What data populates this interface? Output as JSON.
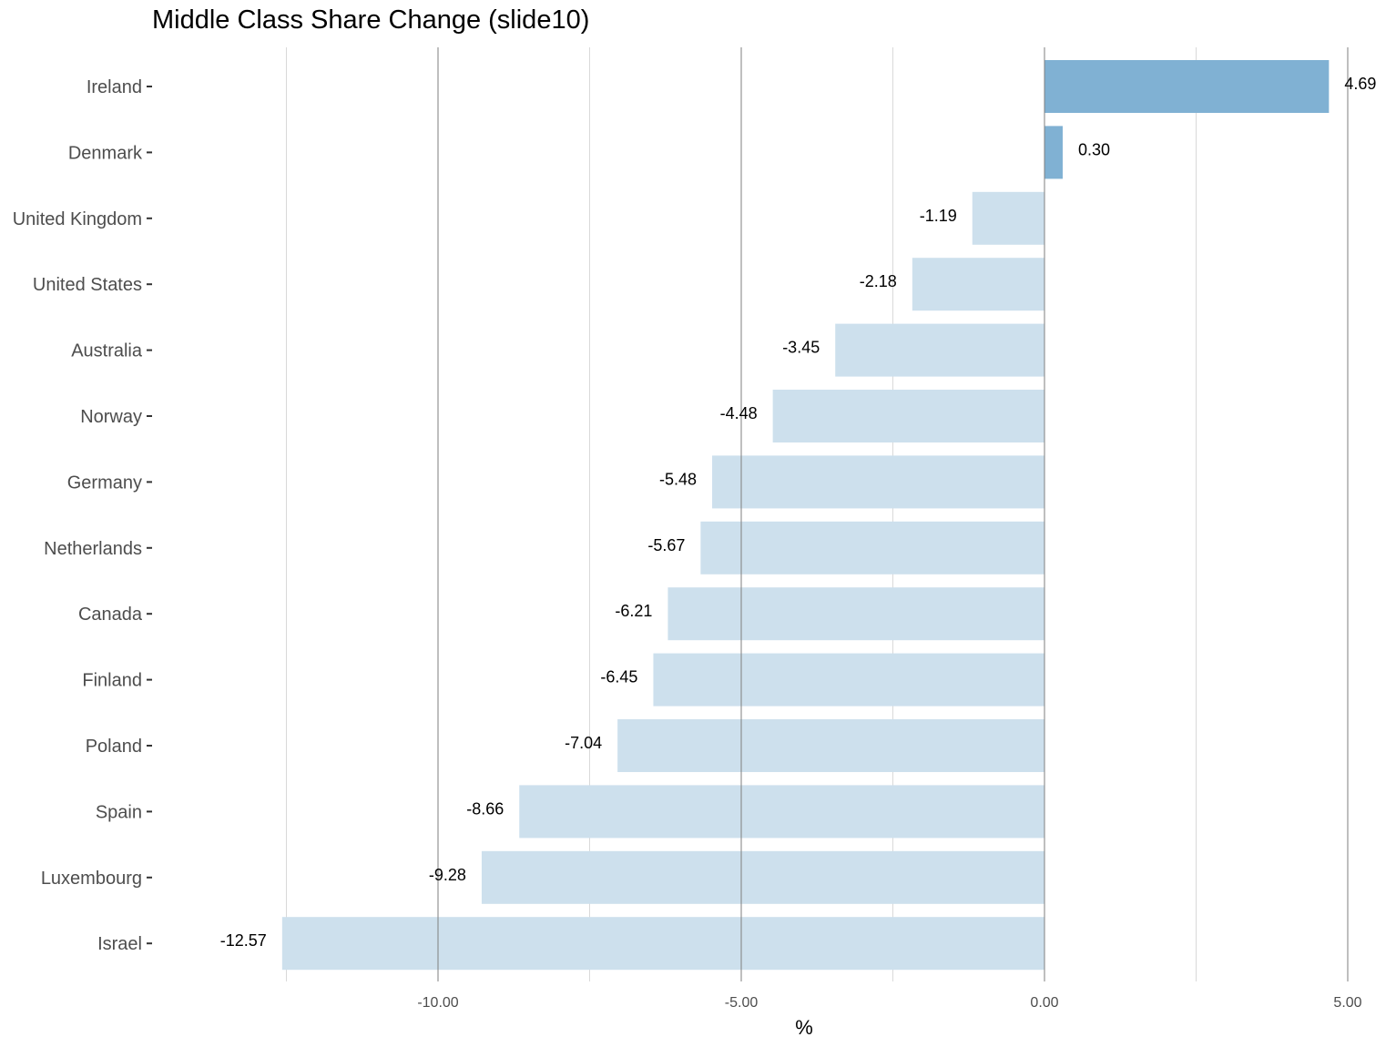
{
  "chart_data": {
    "type": "bar",
    "orientation": "horizontal",
    "title": "Middle Class Share Change (slide10)",
    "xlabel": "%",
    "ylabel": "",
    "categories": [
      "Ireland",
      "Denmark",
      "United Kingdom",
      "United States",
      "Australia",
      "Norway",
      "Germany",
      "Netherlands",
      "Canada",
      "Finland",
      "Poland",
      "Spain",
      "Luxembourg",
      "Israel"
    ],
    "values": [
      4.69,
      0.3,
      -1.19,
      -2.18,
      -3.45,
      -4.48,
      -5.48,
      -5.67,
      -6.21,
      -6.45,
      -7.04,
      -8.66,
      -9.28,
      -12.57
    ],
    "data_labels": [
      "4.69",
      "0.30",
      "-1.19",
      "-2.18",
      "-3.45",
      "-4.48",
      "-5.48",
      "-5.67",
      "-6.21",
      "-6.45",
      "-7.04",
      "-8.66",
      "-9.28",
      "-12.57"
    ],
    "xlim": [
      -12.9,
      5.3
    ],
    "x_ticks": [
      -10,
      -5,
      0,
      5
    ],
    "x_tick_labels": [
      "-10.00",
      "-5.00",
      "0.00",
      "5.00"
    ],
    "minor_gridlines": [
      -12.5,
      -7.5,
      -2.5,
      2.5
    ],
    "grid": true,
    "legend": "none",
    "colors": {
      "positive": "#80b1d3",
      "negative": "#cde0ed",
      "major_grid": "#7f7f7f",
      "minor_grid": "#d9d9d9"
    }
  }
}
